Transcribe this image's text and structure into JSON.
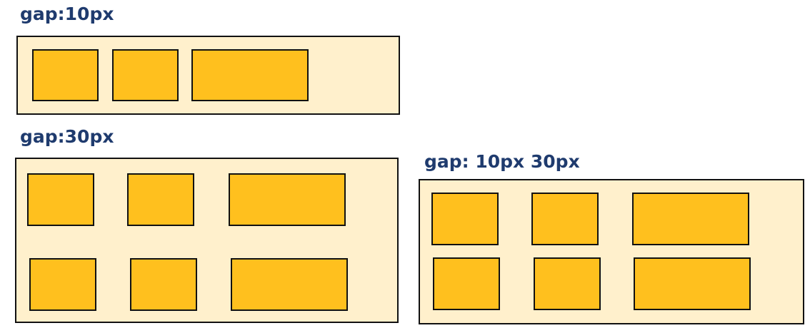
{
  "diagrams": [
    {
      "title": "gap:10px",
      "rows": 1,
      "columns": 3
    },
    {
      "title": "gap:30px",
      "rows": 2,
      "columns": 3
    },
    {
      "title": "gap: 10px 30px",
      "rows": 2,
      "columns": 3
    }
  ],
  "colors": {
    "title": "#1f3b6e",
    "panel": "#fff0cc",
    "item": "#ffc01e",
    "border": "#111111"
  }
}
